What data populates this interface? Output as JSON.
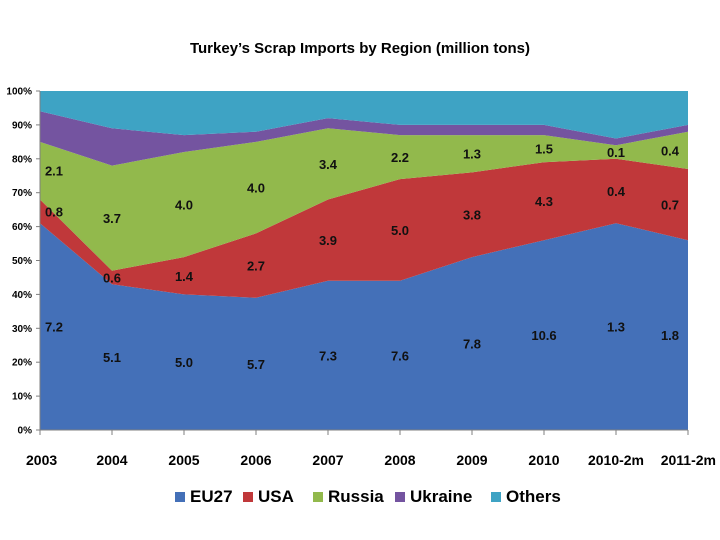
{
  "chart_data": {
    "type": "area",
    "stacked": true,
    "percent": true,
    "title": "Turkey’s Scrap Imports by Region (million tons)",
    "categories": [
      "2003",
      "2004",
      "2005",
      "2006",
      "2007",
      "2008",
      "2009",
      "2010",
      "2010-2m",
      "2011-2m"
    ],
    "y_ticks": [
      "0%",
      "10%",
      "20%",
      "30%",
      "40%",
      "50%",
      "60%",
      "70%",
      "80%",
      "90%",
      "100%"
    ],
    "ylim": [
      0,
      100
    ],
    "grid": false,
    "legend_position": "bottom",
    "series": [
      {
        "name": "EU27",
        "color": "#4470B8",
        "share_pct": [
          61,
          43,
          40,
          39,
          44,
          44,
          51,
          56,
          61,
          56
        ],
        "labels": [
          "7.2",
          "5.1",
          "5.0",
          "5.7",
          "7.3",
          "7.6",
          "7.8",
          "10.6",
          "1.3",
          "1.8"
        ]
      },
      {
        "name": "USA",
        "color": "#C0383A",
        "share_pct": [
          7,
          4,
          11,
          19,
          24,
          30,
          25,
          23,
          19,
          21
        ],
        "labels": [
          "0.8",
          "0.6",
          "1.4",
          "2.7",
          "3.9",
          "5.0",
          "3.8",
          "4.3",
          "0.4",
          "0.7"
        ]
      },
      {
        "name": "Russia",
        "color": "#92B94C",
        "share_pct": [
          17,
          31,
          31,
          27,
          21,
          13,
          11,
          8,
          4,
          11
        ],
        "labels": [
          "2.1",
          "3.7",
          "4.0",
          "4.0",
          "3.4",
          "2.2",
          "1.3",
          "1.5",
          "0.1",
          "0.4"
        ]
      },
      {
        "name": "Ukraine",
        "color": "#7454A0",
        "share_pct": [
          9,
          11,
          5,
          3,
          3,
          3,
          3,
          3,
          2,
          2
        ],
        "labels": []
      },
      {
        "name": "Others",
        "color": "#3EA3C4",
        "share_pct": [
          6,
          11,
          13,
          12,
          8,
          10,
          10,
          10,
          14,
          10
        ],
        "labels": []
      }
    ]
  }
}
